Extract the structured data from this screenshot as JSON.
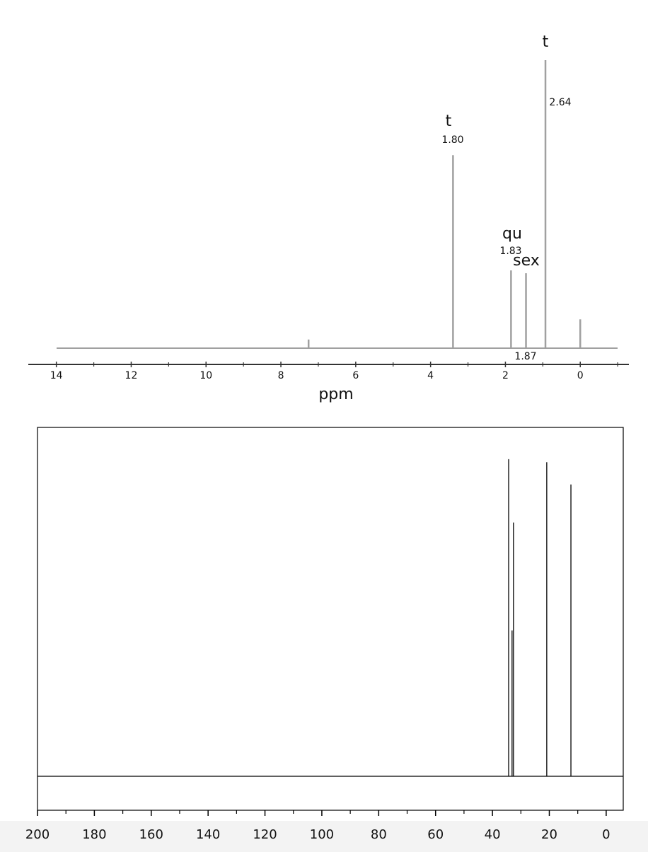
{
  "chart_data": [
    {
      "type": "spectrum",
      "x": [
        7.26,
        3.4,
        1.85,
        1.45,
        0.93,
        0
      ],
      "values": [
        3,
        67,
        27,
        26,
        100,
        10
      ],
      "color": "#a0a0a0",
      "xlim": [
        14.75,
        -1.3
      ],
      "ylim": [
        0,
        100
      ],
      "xticks": [
        14,
        12,
        10,
        8,
        6,
        4,
        2,
        0
      ],
      "minor_xticks": [
        13,
        11,
        9,
        7,
        5,
        3,
        1,
        -1
      ],
      "xlabel": "ppm",
      "annotations": [
        "t",
        "2.64",
        "t",
        "1.80",
        "qu",
        "1.83",
        "sex",
        "1.87"
      ]
    },
    {
      "type": "spectrum",
      "x": [
        34.3,
        33.1,
        32.6,
        20.9,
        12.4
      ],
      "values": [
        100,
        46,
        80,
        99,
        92
      ],
      "color": "#000000",
      "xlim": [
        200,
        -6
      ],
      "ylim": [
        -10.7,
        110
      ],
      "xticks": [
        200,
        180,
        160,
        140,
        120,
        100,
        80,
        60,
        40,
        20,
        0
      ],
      "minor_xticks": [
        190,
        170,
        150,
        130,
        110,
        90,
        70,
        50,
        30,
        10
      ]
    }
  ]
}
